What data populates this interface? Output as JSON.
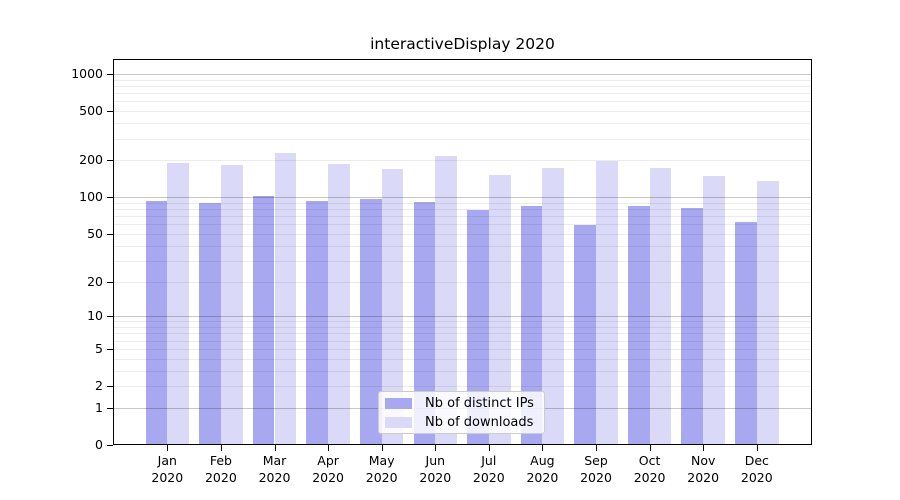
{
  "title": "interactiveDisplay 2020",
  "chart_data": {
    "type": "bar",
    "title": "interactiveDisplay 2020",
    "scale": "log10(1+y)",
    "grid": true,
    "legend_position": "bottom-center",
    "year": "2020",
    "categories": [
      "Jan",
      "Feb",
      "Mar",
      "Apr",
      "May",
      "Jun",
      "Jul",
      "Aug",
      "Sep",
      "Oct",
      "Nov",
      "Dec"
    ],
    "series": [
      {
        "name": "Nb of distinct IPs",
        "color": "#a8a8f0",
        "values": [
          93,
          90,
          102,
          93,
          96,
          92,
          79,
          84,
          59,
          85,
          81,
          63
        ]
      },
      {
        "name": "Nb of downloads",
        "color": "#dadaf8",
        "values": [
          190,
          184,
          230,
          185,
          170,
          215,
          153,
          174,
          197,
          174,
          150,
          136
        ]
      }
    ],
    "y_ticks": [
      0,
      1,
      2,
      5,
      10,
      20,
      50,
      100,
      200,
      500,
      1000
    ],
    "y_minor_gridlines": [
      2,
      3,
      4,
      5,
      6,
      7,
      8,
      9,
      20,
      30,
      40,
      50,
      60,
      70,
      80,
      90,
      200,
      300,
      400,
      500,
      600,
      700,
      800,
      900
    ],
    "y_decade_gridlines": [
      1,
      10,
      100,
      1000
    ],
    "ylim": [
      0,
      1300
    ]
  }
}
